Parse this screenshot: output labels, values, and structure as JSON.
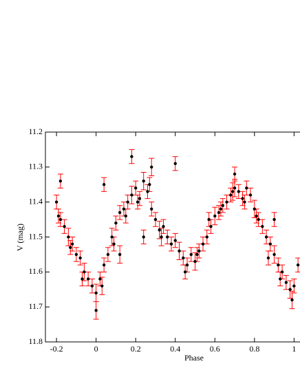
{
  "chart_data": {
    "type": "scatter",
    "x_label": "Phase",
    "y_label": "V (mag)",
    "xlim": [
      -0.256,
      1.03
    ],
    "ylim": [
      11.2,
      11.8
    ],
    "y_inverted": true,
    "xticks": [
      -0.2,
      0,
      0.2,
      0.4,
      0.6,
      0.8,
      1
    ],
    "yticks": [
      11.2,
      11.3,
      11.4,
      11.5,
      11.6,
      11.7,
      11.8
    ],
    "series": [
      {
        "color": "#000000",
        "error_color": "#ff0000",
        "x": [
          -0.2,
          -0.18,
          -0.16,
          -0.14,
          -0.12,
          -0.1,
          -0.08,
          -0.06,
          -0.04,
          -0.02,
          0,
          0.02,
          0.04,
          0.06,
          0.08,
          0.1,
          0.12,
          0.14,
          0.16,
          0.18,
          0.2,
          0.22,
          0.24,
          0.26,
          0.28,
          0.3,
          0.32,
          0.34,
          0.36,
          0.38,
          0.4,
          0.42,
          0.44,
          0.46,
          0.48,
          0.5,
          0.52,
          0.54,
          0.56,
          0.58,
          0.6,
          0.62,
          0.64,
          0.66,
          0.68,
          0.7,
          0.72,
          0.74,
          0.76,
          0.78,
          0.8,
          0.82,
          0.84,
          0.86,
          0.88,
          0.9,
          0.92,
          0.94,
          0.96,
          0.98,
          1,
          1.02,
          0.04,
          0.18,
          0.28,
          0.4,
          0.24,
          0.12,
          0.7,
          0.9,
          -0.18,
          0,
          -0.19,
          -0.13,
          -0.07,
          0.03,
          0.09,
          0.15,
          0.21,
          0.27,
          0.33,
          0.45,
          0.51,
          0.57,
          0.63,
          0.69,
          0.75,
          0.81,
          0.87,
          0.93,
          0.99
        ],
        "y": [
          11.4,
          11.45,
          11.47,
          11.5,
          11.52,
          11.55,
          11.56,
          11.6,
          11.62,
          11.64,
          11.66,
          11.62,
          11.58,
          11.55,
          11.5,
          11.46,
          11.43,
          11.42,
          11.4,
          11.38,
          11.36,
          11.39,
          11.34,
          11.37,
          11.42,
          11.45,
          11.48,
          11.47,
          11.5,
          11.52,
          11.51,
          11.54,
          11.56,
          11.58,
          11.55,
          11.57,
          11.54,
          11.52,
          11.5,
          11.47,
          11.44,
          11.43,
          11.41,
          11.4,
          11.38,
          11.36,
          11.37,
          11.39,
          11.36,
          11.38,
          11.42,
          11.45,
          11.47,
          11.5,
          11.52,
          11.55,
          11.58,
          11.6,
          11.63,
          11.65,
          11.64,
          11.58,
          11.35,
          11.27,
          11.3,
          11.29,
          11.5,
          11.55,
          11.32,
          11.45,
          11.34,
          11.71,
          11.44,
          11.53,
          11.62,
          11.64,
          11.52,
          11.44,
          11.4,
          11.35,
          11.5,
          11.6,
          11.55,
          11.45,
          11.42,
          11.37,
          11.4,
          11.44,
          11.56,
          11.62,
          11.68
        ],
        "errors": [
          0.02,
          0.02,
          0.02,
          0.025,
          0.02,
          0.02,
          0.02,
          0.025,
          0.02,
          0.02,
          0.025,
          0.02,
          0.02,
          0.02,
          0.025,
          0.02,
          0.02,
          0.02,
          0.02,
          0.025,
          0.02,
          0.02,
          0.025,
          0.02,
          0.02,
          0.02,
          0.025,
          0.02,
          0.02,
          0.02,
          0.02,
          0.025,
          0.02,
          0.02,
          0.02,
          0.025,
          0.02,
          0.02,
          0.02,
          0.02,
          0.025,
          0.02,
          0.02,
          0.02,
          0.02,
          0.025,
          0.02,
          0.02,
          0.02,
          0.02,
          0.025,
          0.02,
          0.02,
          0.02,
          0.02,
          0.025,
          0.02,
          0.02,
          0.02,
          0.025,
          0.02,
          0.02,
          0.02,
          0.02,
          0.025,
          0.02,
          0.02,
          0.025,
          0.02,
          0.02,
          0.02,
          0.025,
          0.02,
          0.02,
          0.02,
          0.025,
          0.02,
          0.02,
          0.02,
          0.02,
          0.025,
          0.02,
          0.02,
          0.02,
          0.02,
          0.025,
          0.02,
          0.02,
          0.02,
          0.02,
          0.025
        ]
      }
    ]
  }
}
